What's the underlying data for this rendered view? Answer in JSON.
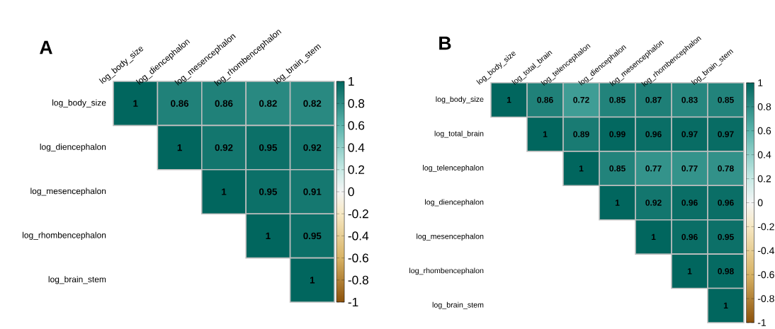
{
  "chart_data": [
    {
      "type": "heatmap",
      "title": "A",
      "categories": [
        "log_body_size",
        "log_diencephalon",
        "log_mesencephalon",
        "log_rhombencephalon",
        "log_brain_stem"
      ],
      "y_categories": [
        "log_body_size",
        "log_diencephalon",
        "log_mesencephalon",
        "log_rhombencephalon",
        "log_brain_stem"
      ],
      "cells": [
        [
          1,
          0.86,
          0.86,
          0.82,
          0.82
        ],
        [
          null,
          1,
          0.92,
          0.95,
          0.92
        ],
        [
          null,
          null,
          1,
          0.95,
          0.91
        ],
        [
          null,
          null,
          null,
          1,
          0.95
        ],
        [
          null,
          null,
          null,
          null,
          1
        ]
      ],
      "clim": [
        -1,
        1
      ],
      "cticks": [
        -1,
        -0.8,
        -0.6,
        -0.4,
        -0.2,
        0,
        0.2,
        0.4,
        0.6,
        0.8,
        1
      ],
      "data_labels": true
    },
    {
      "type": "heatmap",
      "title": "B",
      "categories": [
        "log_body_size",
        "log_total_brain",
        "log_telencephalon",
        "log_diencephalon",
        "log_mesencephalon",
        "log_rhombencephalon",
        "log_brain_stem"
      ],
      "y_categories": [
        "log_body_size",
        "log_total_brain",
        "log_telencephalon",
        "log_diencephalon",
        "log_mesencephalon",
        "log_rhombencephalon",
        "log_brain_stem"
      ],
      "cells": [
        [
          1,
          0.86,
          0.72,
          0.85,
          0.87,
          0.83,
          0.85
        ],
        [
          null,
          1,
          0.89,
          0.99,
          0.96,
          0.97,
          0.97
        ],
        [
          null,
          null,
          1,
          0.85,
          0.77,
          0.77,
          0.78
        ],
        [
          null,
          null,
          null,
          1,
          0.92,
          0.96,
          0.96
        ],
        [
          null,
          null,
          null,
          null,
          1,
          0.96,
          0.95
        ],
        [
          null,
          null,
          null,
          null,
          null,
          1,
          0.98
        ],
        [
          null,
          null,
          null,
          null,
          null,
          null,
          1
        ]
      ],
      "clim": [
        -1,
        1
      ],
      "cticks": [
        -1,
        -0.8,
        -0.6,
        -0.4,
        -0.2,
        0,
        0.2,
        0.4,
        0.6,
        0.8,
        1
      ],
      "data_labels": true
    }
  ]
}
